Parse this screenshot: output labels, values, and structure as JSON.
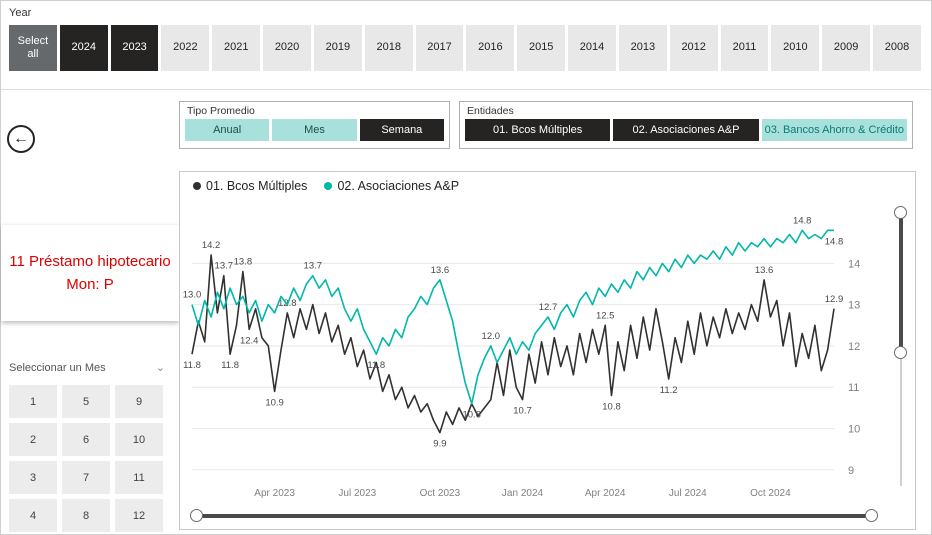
{
  "colors": {
    "series_dark": "#323130",
    "series_teal": "#01B8AA",
    "slicer_selected_dark": "#252423",
    "slicer_teal_light": "#A8E0DB",
    "title_red": "#E00000",
    "grid_gray": "#E8E8E8"
  },
  "year_filter": {
    "label": "Year",
    "select_all": "Select all",
    "years": [
      "2024",
      "2023",
      "2022",
      "2021",
      "2020",
      "2019",
      "2018",
      "2017",
      "2016",
      "2015",
      "2014",
      "2013",
      "2012",
      "2011",
      "2010",
      "2009",
      "2008"
    ]
  },
  "tipo_promedio": {
    "title": "Tipo Promedio",
    "options": [
      "Anual",
      "Mes",
      "Semana"
    ],
    "selected": "Semana"
  },
  "entidades": {
    "title": "Entidades",
    "options": [
      "01. Bcos Múltiples",
      "02. Asociaciones A&P",
      "03. Bancos Ahorro & Crédito"
    ],
    "selected": "03. Bancos Ahorro & Crédito"
  },
  "back_icon": "←",
  "report_title": {
    "line1": "11 Préstamo hipotecario",
    "line2": "Mon: P"
  },
  "month_selector": {
    "label": "Seleccionar un Mes",
    "chevron": "⌄",
    "months": [
      "1",
      "5",
      "9",
      "2",
      "6",
      "10",
      "3",
      "7",
      "11",
      "4",
      "8",
      "12"
    ]
  },
  "chart_data": {
    "type": "line",
    "title": "",
    "xlabel": "",
    "ylabel": "",
    "ylim": [
      8.85,
      15.05
    ],
    "yticks": [
      9,
      10,
      11,
      12,
      13,
      14
    ],
    "grid": true,
    "legend_position": "top-left",
    "xticks": [
      {
        "i": 13,
        "label": "Apr 2023"
      },
      {
        "i": 26,
        "label": "Jul 2023"
      },
      {
        "i": 39,
        "label": "Oct 2023"
      },
      {
        "i": 52,
        "label": "Jan 2024"
      },
      {
        "i": 65,
        "label": "Apr 2024"
      },
      {
        "i": 78,
        "label": "Jul 2024"
      },
      {
        "i": 91,
        "label": "Oct 2024"
      }
    ],
    "series": [
      {
        "name": "01. Bcos Múltiples",
        "color": "#323130",
        "values": [
          11.8,
          12.6,
          12.1,
          14.2,
          12.8,
          13.7,
          11.8,
          12.5,
          13.8,
          12.4,
          12.9,
          12.2,
          12.0,
          10.9,
          11.9,
          12.8,
          12.2,
          12.9,
          12.4,
          13.0,
          12.3,
          12.8,
          12.1,
          12.5,
          11.8,
          12.2,
          11.5,
          11.9,
          11.2,
          11.6,
          10.9,
          11.3,
          10.7,
          11.0,
          10.5,
          10.8,
          10.4,
          10.6,
          10.2,
          9.9,
          10.4,
          10.1,
          10.5,
          10.2,
          10.6,
          10.3,
          10.5,
          10.7,
          11.6,
          10.8,
          11.9,
          11.0,
          10.7,
          11.8,
          11.1,
          12.1,
          11.3,
          12.2,
          11.5,
          12.0,
          11.3,
          12.3,
          11.6,
          12.4,
          11.8,
          12.5,
          10.8,
          12.1,
          11.4,
          12.5,
          11.7,
          12.7,
          11.9,
          12.9,
          12.1,
          11.2,
          12.2,
          11.6,
          12.6,
          11.8,
          12.8,
          12.0,
          12.7,
          12.2,
          12.9,
          12.3,
          12.8,
          12.4,
          13.0,
          12.6,
          13.6,
          12.7,
          13.1,
          12.0,
          12.8,
          11.5,
          12.3,
          11.7,
          12.5,
          11.4,
          11.9,
          12.9
        ],
        "labels": [
          {
            "i": 0,
            "t": "11.8",
            "p": "b"
          },
          {
            "i": 3,
            "t": "14.2",
            "p": "a"
          },
          {
            "i": 5,
            "t": "13.7",
            "p": "a"
          },
          {
            "i": 6,
            "t": "11.8",
            "p": "b"
          },
          {
            "i": 8,
            "t": "13.8",
            "p": "a"
          },
          {
            "i": 9,
            "t": "12.4",
            "p": "b"
          },
          {
            "i": 13,
            "t": "10.9",
            "p": "b"
          },
          {
            "i": 15,
            "t": "12.8",
            "p": "a"
          },
          {
            "i": 39,
            "t": "9.9",
            "p": "b"
          },
          {
            "i": 52,
            "t": "10.7",
            "p": "b"
          },
          {
            "i": 65,
            "t": "12.5",
            "p": "a"
          },
          {
            "i": 66,
            "t": "10.8",
            "p": "b"
          },
          {
            "i": 75,
            "t": "11.2",
            "p": "b"
          },
          {
            "i": 90,
            "t": "13.6",
            "p": "a"
          },
          {
            "i": 101,
            "t": "12.9",
            "p": "a"
          }
        ]
      },
      {
        "name": "02. Asociaciones A&P",
        "color": "#01B8AA",
        "values": [
          13.0,
          12.5,
          13.1,
          12.7,
          13.3,
          12.9,
          13.4,
          13.0,
          13.2,
          12.8,
          13.1,
          12.6,
          13.0,
          12.8,
          13.2,
          13.0,
          13.4,
          13.1,
          13.5,
          13.7,
          13.4,
          13.6,
          13.2,
          13.4,
          12.9,
          12.6,
          12.9,
          12.4,
          12.1,
          11.8,
          12.2,
          12.0,
          12.4,
          12.2,
          12.7,
          12.9,
          13.2,
          13.0,
          13.4,
          13.6,
          13.1,
          12.6,
          11.8,
          11.1,
          10.6,
          11.3,
          11.7,
          12.0,
          11.6,
          11.9,
          12.2,
          11.8,
          12.1,
          11.9,
          12.3,
          12.5,
          12.7,
          12.4,
          12.8,
          13.0,
          12.7,
          13.1,
          13.3,
          13.0,
          13.4,
          13.2,
          13.5,
          13.3,
          13.6,
          13.4,
          13.8,
          13.6,
          13.9,
          13.7,
          14.0,
          13.8,
          14.1,
          13.9,
          14.2,
          14.0,
          14.2,
          14.1,
          14.3,
          14.1,
          14.4,
          14.2,
          14.5,
          14.3,
          14.5,
          14.4,
          14.6,
          14.4,
          14.6,
          14.5,
          14.7,
          14.5,
          14.8,
          14.6,
          14.7,
          14.6,
          14.8,
          14.8
        ],
        "labels": [
          {
            "i": 0,
            "t": "13.0",
            "p": "a"
          },
          {
            "i": 19,
            "t": "13.7",
            "p": "a"
          },
          {
            "i": 29,
            "t": "11.8",
            "p": "b"
          },
          {
            "i": 39,
            "t": "13.6",
            "p": "a"
          },
          {
            "i": 44,
            "t": "10.6",
            "p": "b"
          },
          {
            "i": 47,
            "t": "12.0",
            "p": "a"
          },
          {
            "i": 56,
            "t": "12.7",
            "p": "a"
          },
          {
            "i": 96,
            "t": "14.8",
            "p": "a"
          },
          {
            "i": 101,
            "t": "14.8",
            "p": "b"
          }
        ]
      }
    ]
  }
}
